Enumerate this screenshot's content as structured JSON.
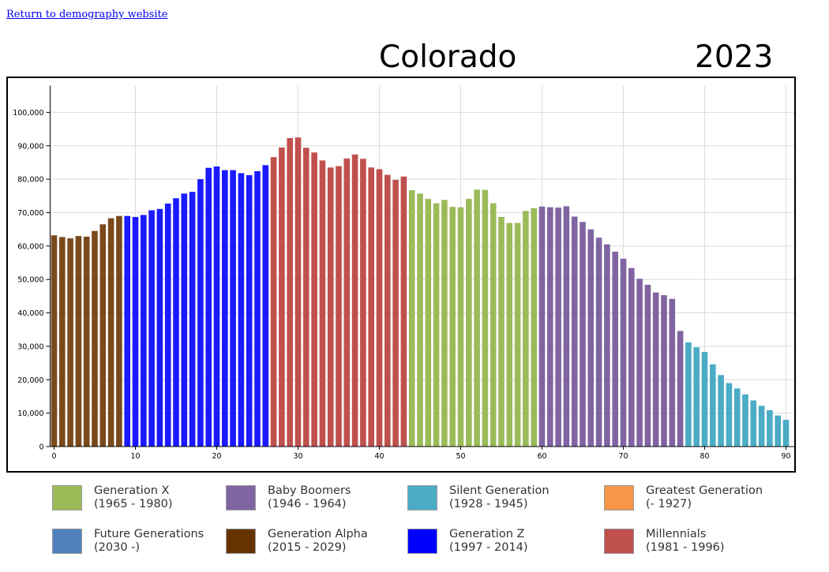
{
  "link": {
    "label": "Return to demography website"
  },
  "header": {
    "state": "Colorado",
    "year": "2023"
  },
  "colors": {
    "gen_alpha": "#7a4a1c",
    "gen_z": "#1a1aff",
    "millennials": "#c0504d",
    "gen_x": "#9bbb59",
    "boomers": "#8064a2",
    "silent": "#4bacc6",
    "greatest": "#f79646",
    "future": "#4f81bd"
  },
  "legend": [
    {
      "name": "Generation X",
      "years": "(1965 - 1980)",
      "color": "#9bbb59"
    },
    {
      "name": "Baby Boomers",
      "years": "(1946 - 1964)",
      "color": "#8064a2"
    },
    {
      "name": "Silent Generation",
      "years": "(1928 - 1945)",
      "color": "#4bacc6"
    },
    {
      "name": "Greatest Generation",
      "years": "(- 1927)",
      "color": "#f79646"
    },
    {
      "name": "Future Generations",
      "years": "(2030 -)",
      "color": "#4f81bd"
    },
    {
      "name": "Generation Alpha",
      "years": "(2015 - 2029)",
      "color": "#663300"
    },
    {
      "name": "Generation Z",
      "years": "(1997 - 2014)",
      "color": "#0000ff"
    },
    {
      "name": "Millennials",
      "years": "(1981 - 1996)",
      "color": "#c0504d"
    }
  ],
  "chart_data": {
    "type": "bar",
    "title": "",
    "xlabel": "",
    "ylabel": "",
    "xlim": [
      0,
      91
    ],
    "ylim": [
      0,
      108000
    ],
    "x_ticks": [
      0,
      10,
      20,
      30,
      40,
      50,
      60,
      70,
      80,
      90
    ],
    "x_tick_labels": [
      "0",
      "10",
      "20",
      "30",
      "40",
      "50",
      "60",
      "70",
      "80",
      "90"
    ],
    "y_ticks": [
      0,
      10000,
      20000,
      30000,
      40000,
      50000,
      60000,
      70000,
      80000,
      90000,
      100000
    ],
    "y_tick_labels": [
      "0",
      "10,000",
      "20,000",
      "30,000",
      "40,000",
      "50,000",
      "60,000",
      "70,000",
      "80,000",
      "90,000",
      "100,000"
    ],
    "grid": true,
    "legend_position": "bottom",
    "x": [
      0,
      1,
      2,
      3,
      4,
      5,
      6,
      7,
      8,
      9,
      10,
      11,
      12,
      13,
      14,
      15,
      16,
      17,
      18,
      19,
      20,
      21,
      22,
      23,
      24,
      25,
      26,
      27,
      28,
      29,
      30,
      31,
      32,
      33,
      34,
      35,
      36,
      37,
      38,
      39,
      40,
      41,
      42,
      43,
      44,
      45,
      46,
      47,
      48,
      49,
      50,
      51,
      52,
      53,
      54,
      55,
      56,
      57,
      58,
      59,
      60,
      61,
      62,
      63,
      64,
      65,
      66,
      67,
      68,
      69,
      70,
      71,
      72,
      73,
      74,
      75,
      76,
      77,
      78,
      79,
      80,
      81,
      82,
      83,
      84,
      85,
      86,
      87,
      88,
      89,
      90
    ],
    "values": [
      63200,
      62700,
      62300,
      63000,
      62800,
      64500,
      66500,
      68300,
      69000,
      69000,
      68700,
      69300,
      70700,
      71100,
      72700,
      74300,
      75700,
      76200,
      80000,
      83400,
      83800,
      82700,
      82700,
      81800,
      81200,
      82400,
      84200,
      86600,
      89500,
      92300,
      92500,
      89400,
      88000,
      85600,
      83500,
      83900,
      86200,
      87400,
      86100,
      83500,
      83000,
      81300,
      79800,
      80800,
      76700,
      75700,
      74100,
      72800,
      73800,
      71700,
      71600,
      74100,
      76900,
      76800,
      72800,
      68700,
      66900,
      66900,
      70500,
      71300,
      71800,
      71600,
      71500,
      71900,
      68800,
      67200,
      65000,
      62500,
      60500,
      58300,
      56200,
      53400,
      50200,
      48400,
      46100,
      45300,
      44200,
      34600,
      31200,
      29700,
      28300,
      24600,
      21400,
      19000,
      17400,
      15600,
      13800,
      12200,
      10900,
      9300,
      8000
    ],
    "categories": [
      "Generation Alpha",
      "Generation Alpha",
      "Generation Alpha",
      "Generation Alpha",
      "Generation Alpha",
      "Generation Alpha",
      "Generation Alpha",
      "Generation Alpha",
      "Generation Alpha",
      "Generation Z",
      "Generation Z",
      "Generation Z",
      "Generation Z",
      "Generation Z",
      "Generation Z",
      "Generation Z",
      "Generation Z",
      "Generation Z",
      "Generation Z",
      "Generation Z",
      "Generation Z",
      "Generation Z",
      "Generation Z",
      "Generation Z",
      "Generation Z",
      "Generation Z",
      "Generation Z",
      "Millennials",
      "Millennials",
      "Millennials",
      "Millennials",
      "Millennials",
      "Millennials",
      "Millennials",
      "Millennials",
      "Millennials",
      "Millennials",
      "Millennials",
      "Millennials",
      "Millennials",
      "Millennials",
      "Millennials",
      "Millennials",
      "Millennials",
      "Generation X",
      "Generation X",
      "Generation X",
      "Generation X",
      "Generation X",
      "Generation X",
      "Generation X",
      "Generation X",
      "Generation X",
      "Generation X",
      "Generation X",
      "Generation X",
      "Generation X",
      "Generation X",
      "Generation X",
      "Generation X",
      "Baby Boomers",
      "Baby Boomers",
      "Baby Boomers",
      "Baby Boomers",
      "Baby Boomers",
      "Baby Boomers",
      "Baby Boomers",
      "Baby Boomers",
      "Baby Boomers",
      "Baby Boomers",
      "Baby Boomers",
      "Baby Boomers",
      "Baby Boomers",
      "Baby Boomers",
      "Baby Boomers",
      "Baby Boomers",
      "Baby Boomers",
      "Baby Boomers",
      "Silent Generation",
      "Silent Generation",
      "Silent Generation",
      "Silent Generation",
      "Silent Generation",
      "Silent Generation",
      "Silent Generation",
      "Silent Generation",
      "Silent Generation",
      "Silent Generation",
      "Silent Generation",
      "Silent Generation",
      "Silent Generation",
      "Silent Generation"
    ]
  }
}
